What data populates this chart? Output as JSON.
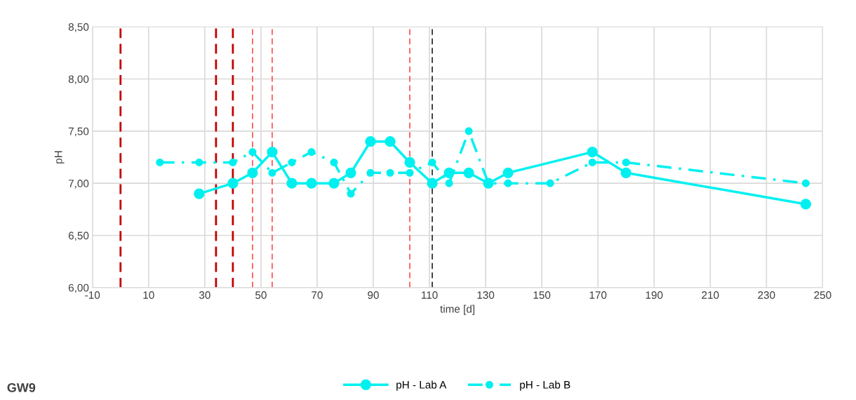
{
  "chart_data": {
    "type": "line",
    "xlabel": "time [d]",
    "ylabel": "pH",
    "xlim": [
      -10,
      250
    ],
    "xticks": [
      -10,
      10,
      30,
      50,
      70,
      90,
      110,
      130,
      150,
      170,
      190,
      210,
      230,
      250
    ],
    "ylim": [
      6.0,
      8.5
    ],
    "yticks": [
      {
        "value": 6.0,
        "label": "6,00"
      },
      {
        "value": 6.5,
        "label": "6,50"
      },
      {
        "value": 7.0,
        "label": "7,00"
      },
      {
        "value": 7.5,
        "label": "7,50"
      },
      {
        "value": 8.0,
        "label": "8,00"
      },
      {
        "value": 8.5,
        "label": "8,50"
      }
    ],
    "grid": true,
    "legend": "bottom",
    "marker": "circle",
    "series": [
      {
        "name": "pH - Lab A",
        "color": "#00f0f0",
        "line_style": "solid",
        "x": [
          28,
          40,
          47,
          54,
          61,
          68,
          76,
          82,
          89,
          96,
          103,
          111,
          117,
          124,
          131,
          138,
          168,
          180,
          244
        ],
        "values": [
          6.9,
          7.0,
          7.1,
          7.3,
          7.0,
          7.0,
          7.0,
          7.1,
          7.4,
          7.4,
          7.2,
          7.0,
          7.1,
          7.1,
          7.0,
          7.1,
          7.3,
          7.1,
          6.8
        ]
      },
      {
        "name": "pH - Lab B",
        "color": "#00f0f0",
        "line_style": "dashdot",
        "x": [
          14,
          28,
          40,
          47,
          54,
          61,
          68,
          76,
          82,
          89,
          96,
          103,
          111,
          117,
          124,
          131,
          138,
          153,
          168,
          180,
          244
        ],
        "values": [
          7.2,
          7.2,
          7.2,
          7.3,
          7.1,
          7.2,
          7.3,
          7.2,
          6.9,
          7.1,
          7.1,
          7.1,
          7.2,
          7.0,
          7.5,
          7.0,
          7.0,
          7.0,
          7.2,
          7.2,
          7.0
        ]
      }
    ],
    "ref_lines": [
      {
        "axis": "x",
        "value": 0,
        "color": "#c00000",
        "line_style": "dashed"
      },
      {
        "axis": "x",
        "value": 34,
        "color": "#c00000",
        "line_style": "dashed"
      },
      {
        "axis": "x",
        "value": 40,
        "color": "#c00000",
        "line_style": "dashed"
      },
      {
        "axis": "x",
        "value": 47,
        "color": "#ff4d4d",
        "line_style": "dashed"
      },
      {
        "axis": "x",
        "value": 54,
        "color": "#ff4d4d",
        "line_style": "dashed"
      },
      {
        "axis": "x",
        "value": 103,
        "color": "#ff4d4d",
        "line_style": "dashed"
      },
      {
        "axis": "x",
        "value": 111,
        "color": "#202020",
        "line_style": "dashed"
      }
    ],
    "annotations": [
      "GW9"
    ]
  }
}
